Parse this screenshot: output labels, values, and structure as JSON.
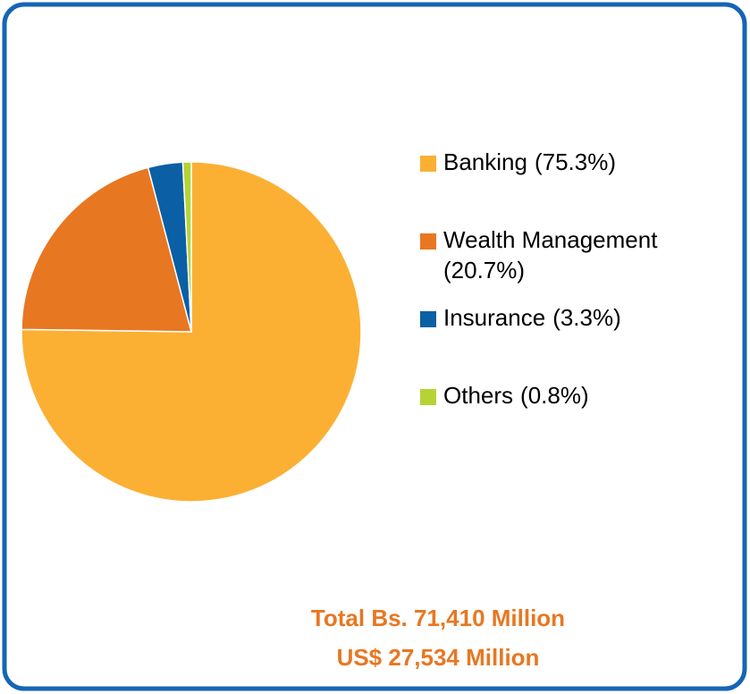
{
  "chart_data": {
    "type": "pie",
    "categories": [
      "Banking",
      "Wealth Management",
      "Insurance",
      "Others"
    ],
    "values": [
      75.3,
      20.7,
      3.3,
      0.8
    ],
    "value_labels": [
      "(75.3%)",
      "(20.7%)",
      "(3.3%)",
      "(0.8%)"
    ],
    "colors": [
      "#fbb034",
      "#e87722",
      "#0b5fa5",
      "#b5d334"
    ],
    "legend": "right",
    "annotations": [
      "Total Bs. 71,410 Million",
      "US$ 27,534 Million"
    ]
  }
}
